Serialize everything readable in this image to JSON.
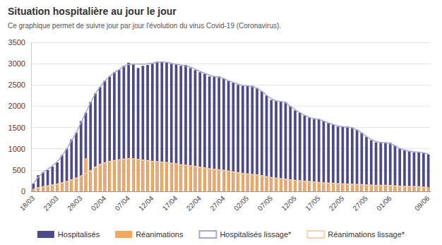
{
  "chart_data": {
    "type": "bar",
    "title": "Situation hospitalière au jour le jour",
    "subtitle": "Ce graphique permet de suivre jour par jour l'évolution du virus Covid-19 (Coronavirus).",
    "categories": [
      "18/03",
      null,
      null,
      null,
      null,
      "23/03",
      null,
      null,
      null,
      null,
      "28/03",
      null,
      null,
      null,
      null,
      "02/04",
      null,
      null,
      null,
      null,
      "07/04",
      null,
      null,
      null,
      null,
      "12/04",
      null,
      null,
      null,
      null,
      "17/04",
      null,
      null,
      null,
      null,
      "22/04",
      null,
      null,
      null,
      null,
      "27/04",
      null,
      null,
      null,
      null,
      "02/05",
      null,
      null,
      null,
      null,
      "07/05",
      null,
      null,
      null,
      null,
      "12/05",
      null,
      null,
      null,
      null,
      "17/05",
      null,
      null,
      null,
      null,
      "22/05",
      null,
      null,
      null,
      null,
      "27/05",
      null,
      null,
      null,
      null,
      "01/06",
      null,
      null,
      null,
      null,
      null,
      null,
      null,
      "09/06"
    ],
    "series": [
      {
        "name": "Hospitalisés",
        "type": "bar",
        "color": "#4b4a8e",
        "values": [
          180,
          380,
          450,
          500,
          580,
          680,
          850,
          1000,
          1220,
          1380,
          1650,
          1850,
          2100,
          2300,
          2450,
          2600,
          2700,
          2800,
          2850,
          2950,
          3020,
          2980,
          2900,
          2950,
          2970,
          3000,
          3050,
          3050,
          3020,
          3000,
          2980,
          2950,
          2970,
          2900,
          2850,
          2800,
          2760,
          2700,
          2700,
          2700,
          2650,
          2600,
          2550,
          2500,
          2480,
          2480,
          2480,
          2430,
          2350,
          2250,
          2150,
          2120,
          2120,
          2100,
          2000,
          1900,
          1850,
          1780,
          1730,
          1700,
          1700,
          1650,
          1600,
          1570,
          1520,
          1520,
          1520,
          1500,
          1450,
          1380,
          1280,
          1200,
          1150,
          1150,
          1150,
          1140,
          1080,
          1000,
          960,
          940,
          920,
          930,
          910,
          870
        ]
      },
      {
        "name": "Réanimations",
        "type": "bar",
        "color": "#f5a75c",
        "values": [
          50,
          90,
          110,
          130,
          150,
          170,
          200,
          230,
          270,
          300,
          350,
          780,
          500,
          580,
          640,
          680,
          700,
          720,
          740,
          760,
          780,
          770,
          750,
          740,
          720,
          700,
          700,
          690,
          680,
          660,
          650,
          620,
          620,
          600,
          590,
          570,
          550,
          530,
          520,
          510,
          500,
          480,
          460,
          440,
          420,
          410,
          400,
          390,
          370,
          350,
          330,
          310,
          300,
          290,
          270,
          260,
          250,
          240,
          230,
          220,
          210,
          200,
          200,
          190,
          180,
          180,
          170,
          170,
          160,
          160,
          150,
          140,
          140,
          140,
          140,
          140,
          130,
          120,
          120,
          110,
          110,
          110,
          100,
          90
        ]
      },
      {
        "name": "Hospitalisés lissage*",
        "type": "line",
        "color": "#a9a7d8",
        "marker": "none",
        "line_style": "solid",
        "values": [
          180,
          330,
          440,
          520,
          600,
          700,
          840,
          1000,
          1190,
          1380,
          1620,
          1850,
          2080,
          2290,
          2450,
          2590,
          2700,
          2790,
          2860,
          2930,
          2980,
          2990,
          2990,
          2990,
          3000,
          3010,
          3030,
          3040,
          3030,
          3010,
          2990,
          2970,
          2950,
          2920,
          2870,
          2820,
          2770,
          2730,
          2700,
          2680,
          2650,
          2600,
          2560,
          2520,
          2490,
          2480,
          2460,
          2420,
          2350,
          2260,
          2180,
          2130,
          2110,
          2080,
          2000,
          1920,
          1850,
          1790,
          1740,
          1710,
          1690,
          1650,
          1610,
          1570,
          1540,
          1520,
          1510,
          1490,
          1440,
          1370,
          1290,
          1220,
          1170,
          1150,
          1140,
          1120,
          1070,
          1010,
          970,
          945,
          930,
          920,
          905,
          880
        ]
      },
      {
        "name": "Réanimations lissage*",
        "type": "line",
        "color": "#fbd3a8",
        "marker": "none",
        "line_style": "solid",
        "values": [
          50,
          85,
          110,
          130,
          150,
          170,
          200,
          230,
          270,
          310,
          360,
          420,
          480,
          560,
          630,
          670,
          700,
          720,
          740,
          760,
          770,
          765,
          750,
          735,
          720,
          705,
          695,
          685,
          675,
          660,
          645,
          625,
          615,
          600,
          585,
          565,
          550,
          530,
          520,
          505,
          495,
          475,
          455,
          440,
          420,
          405,
          395,
          385,
          365,
          345,
          325,
          310,
          298,
          285,
          270,
          258,
          248,
          238,
          228,
          218,
          208,
          200,
          195,
          188,
          180,
          176,
          170,
          166,
          160,
          156,
          150,
          145,
          142,
          140,
          140,
          138,
          130,
          122,
          118,
          112,
          110,
          108,
          100,
          92
        ]
      }
    ],
    "ylim": [
      0,
      3500
    ],
    "yticks": [
      0,
      500,
      1000,
      1500,
      2000,
      2500,
      3000,
      3500
    ],
    "grid": true,
    "legend": "bottom"
  }
}
